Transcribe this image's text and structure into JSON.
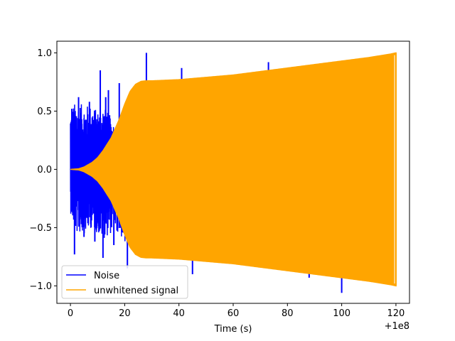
{
  "chart_data": {
    "type": "line",
    "title": "",
    "xlabel": "Time (s)",
    "ylabel": "",
    "x_offset_label": "+1e8",
    "xlim": [
      -5,
      125
    ],
    "ylim": [
      -1.15,
      1.1
    ],
    "x_ticks": [
      0,
      20,
      40,
      60,
      80,
      100,
      120
    ],
    "y_ticks": [
      -1.0,
      -0.5,
      0.0,
      0.5,
      1.0
    ],
    "x_tick_labels": [
      "0",
      "20",
      "40",
      "60",
      "80",
      "100",
      "120"
    ],
    "y_tick_labels": [
      "−1.0",
      "−0.5",
      "0.0",
      "0.5",
      "1.0"
    ],
    "grid": false,
    "legend_position": "lower-left",
    "series": [
      {
        "name": "Noise",
        "color": "#0000ff",
        "envelope_x": [
          0,
          2,
          5,
          8,
          10,
          12,
          15,
          18,
          20,
          22,
          25,
          28,
          30,
          40,
          60,
          80,
          100,
          120
        ],
        "envelope_upper": [
          0.52,
          0.58,
          0.55,
          0.55,
          0.5,
          0.55,
          0.45,
          0.3,
          0.15,
          0.08,
          0.04,
          0.02,
          0.0,
          0.0,
          0.0,
          0.0,
          0.0,
          0.0
        ],
        "envelope_lower": [
          -0.37,
          -0.55,
          -0.55,
          -0.5,
          -0.55,
          -0.6,
          -0.55,
          -0.55,
          -0.65,
          -0.65,
          -0.7,
          -0.75,
          -0.78,
          0.0,
          0.0,
          0.0,
          0.0,
          0.0
        ],
        "spikes_x": [
          0.5,
          1.5,
          3,
          5,
          7,
          9,
          11,
          12,
          13,
          14,
          16,
          18,
          21,
          28,
          41,
          45,
          73,
          88,
          96,
          100
        ],
        "spikes_y": [
          0.52,
          -0.73,
          0.62,
          -0.58,
          0.58,
          -0.62,
          0.85,
          -0.76,
          0.62,
          0.68,
          -0.65,
          0.74,
          -0.85,
          1.0,
          0.87,
          -0.9,
          0.92,
          -0.93,
          -0.9,
          -1.06
        ]
      },
      {
        "name": "unwhitened signal",
        "color": "#ffa500",
        "envelope_x": [
          0,
          3,
          5,
          8,
          10,
          12,
          15,
          18,
          20,
          22,
          24,
          26,
          28,
          30,
          35,
          40,
          50,
          60,
          70,
          80,
          90,
          100,
          110,
          118,
          120
        ],
        "envelope_upper": [
          0.0,
          0.005,
          0.02,
          0.06,
          0.1,
          0.16,
          0.27,
          0.43,
          0.56,
          0.67,
          0.73,
          0.755,
          0.76,
          0.76,
          0.765,
          0.77,
          0.79,
          0.81,
          0.84,
          0.87,
          0.9,
          0.93,
          0.96,
          0.99,
          1.0
        ],
        "envelope_lower": [
          0.0,
          -0.005,
          -0.02,
          -0.06,
          -0.1,
          -0.16,
          -0.27,
          -0.43,
          -0.56,
          -0.67,
          -0.73,
          -0.755,
          -0.76,
          -0.76,
          -0.765,
          -0.77,
          -0.79,
          -0.81,
          -0.84,
          -0.87,
          -0.9,
          -0.93,
          -0.96,
          -0.99,
          -1.0
        ]
      }
    ]
  }
}
